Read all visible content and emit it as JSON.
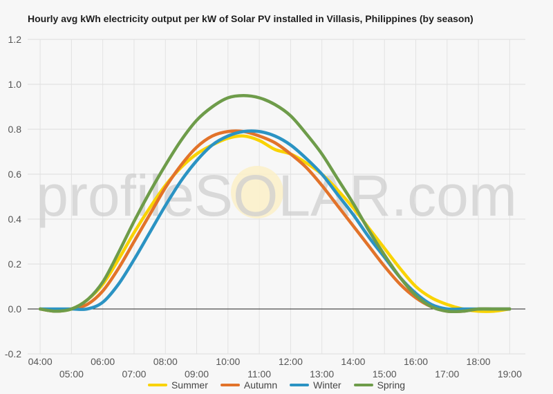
{
  "chart_data": {
    "type": "line",
    "title": "Hourly avg kWh electricity output per kW of Solar PV installed in Villasis, Philippines (by season)",
    "xlabel": "",
    "ylabel": "",
    "x_tick_labels_top": [
      "04:00",
      "06:00",
      "08:00",
      "10:00",
      "12:00",
      "14:00",
      "16:00",
      "18:00"
    ],
    "x_tick_labels_bottom": [
      "05:00",
      "07:00",
      "09:00",
      "11:00",
      "13:00",
      "15:00",
      "17:00",
      "19:00"
    ],
    "y_tick_labels": [
      "1.2",
      "1.0",
      "0.8",
      "0.6",
      "0.4",
      "0.2",
      "0.0",
      "-0.2"
    ],
    "ylim": [
      -0.2,
      1.2
    ],
    "xlim": [
      3.6,
      19.5
    ],
    "grid": true,
    "legend_position": "bottom",
    "watermark": "profileSOLAR.com",
    "series": [
      {
        "name": "Summer",
        "color": "#f9d300",
        "x": [
          4,
          4.5,
          5,
          5.5,
          6,
          6.5,
          7,
          7.5,
          8,
          8.5,
          9,
          9.5,
          10,
          10.5,
          11,
          11.5,
          12,
          12.5,
          13,
          13.5,
          14,
          14.5,
          15,
          15.5,
          16,
          16.5,
          17,
          17.5,
          18,
          18.5,
          19
        ],
        "y": [
          0.0,
          -0.01,
          0.0,
          0.04,
          0.11,
          0.22,
          0.34,
          0.45,
          0.55,
          0.63,
          0.69,
          0.73,
          0.76,
          0.77,
          0.75,
          0.71,
          0.69,
          0.65,
          0.6,
          0.53,
          0.45,
          0.36,
          0.27,
          0.18,
          0.1,
          0.05,
          0.02,
          0.0,
          -0.01,
          -0.01,
          0.0
        ]
      },
      {
        "name": "Autumn",
        "color": "#e2732a",
        "x": [
          4,
          4.5,
          5,
          5.5,
          6,
          6.5,
          7,
          7.5,
          8,
          8.5,
          9,
          9.5,
          10,
          10.5,
          11,
          11.5,
          12,
          12.5,
          13,
          13.5,
          14,
          14.5,
          15,
          15.5,
          16,
          16.5,
          17,
          17.5,
          18,
          18.5,
          19
        ],
        "y": [
          0.0,
          -0.01,
          0.0,
          0.02,
          0.08,
          0.18,
          0.3,
          0.42,
          0.54,
          0.64,
          0.72,
          0.77,
          0.79,
          0.79,
          0.77,
          0.74,
          0.69,
          0.63,
          0.55,
          0.46,
          0.37,
          0.28,
          0.19,
          0.11,
          0.05,
          0.01,
          -0.01,
          -0.01,
          0.0,
          0.0,
          0.0
        ]
      },
      {
        "name": "Winter",
        "color": "#2b93c3",
        "x": [
          4,
          4.5,
          5,
          5.5,
          6,
          6.5,
          7,
          7.5,
          8,
          8.5,
          9,
          9.5,
          10,
          10.5,
          11,
          11.5,
          12,
          12.5,
          13,
          13.5,
          14,
          14.5,
          15,
          15.5,
          16,
          16.5,
          17,
          17.5,
          18,
          18.5,
          19
        ],
        "y": [
          0.0,
          0.0,
          0.0,
          0.0,
          0.03,
          0.11,
          0.22,
          0.34,
          0.46,
          0.57,
          0.66,
          0.73,
          0.77,
          0.79,
          0.79,
          0.77,
          0.73,
          0.67,
          0.6,
          0.51,
          0.42,
          0.32,
          0.23,
          0.14,
          0.07,
          0.02,
          0.0,
          0.0,
          0.0,
          0.0,
          0.0
        ]
      },
      {
        "name": "Spring",
        "color": "#6e9c4a",
        "x": [
          4,
          4.5,
          5,
          5.5,
          6,
          6.5,
          7,
          7.5,
          8,
          8.5,
          9,
          9.5,
          10,
          10.5,
          11,
          11.5,
          12,
          12.5,
          13,
          13.5,
          14,
          14.5,
          15,
          15.5,
          16,
          16.5,
          17,
          17.5,
          18,
          18.5,
          19
        ],
        "y": [
          0.0,
          -0.01,
          0.0,
          0.04,
          0.12,
          0.25,
          0.39,
          0.52,
          0.64,
          0.75,
          0.84,
          0.9,
          0.94,
          0.95,
          0.94,
          0.91,
          0.86,
          0.78,
          0.69,
          0.58,
          0.47,
          0.35,
          0.24,
          0.14,
          0.06,
          0.01,
          -0.01,
          -0.01,
          0.0,
          0.0,
          0.0
        ]
      }
    ]
  }
}
